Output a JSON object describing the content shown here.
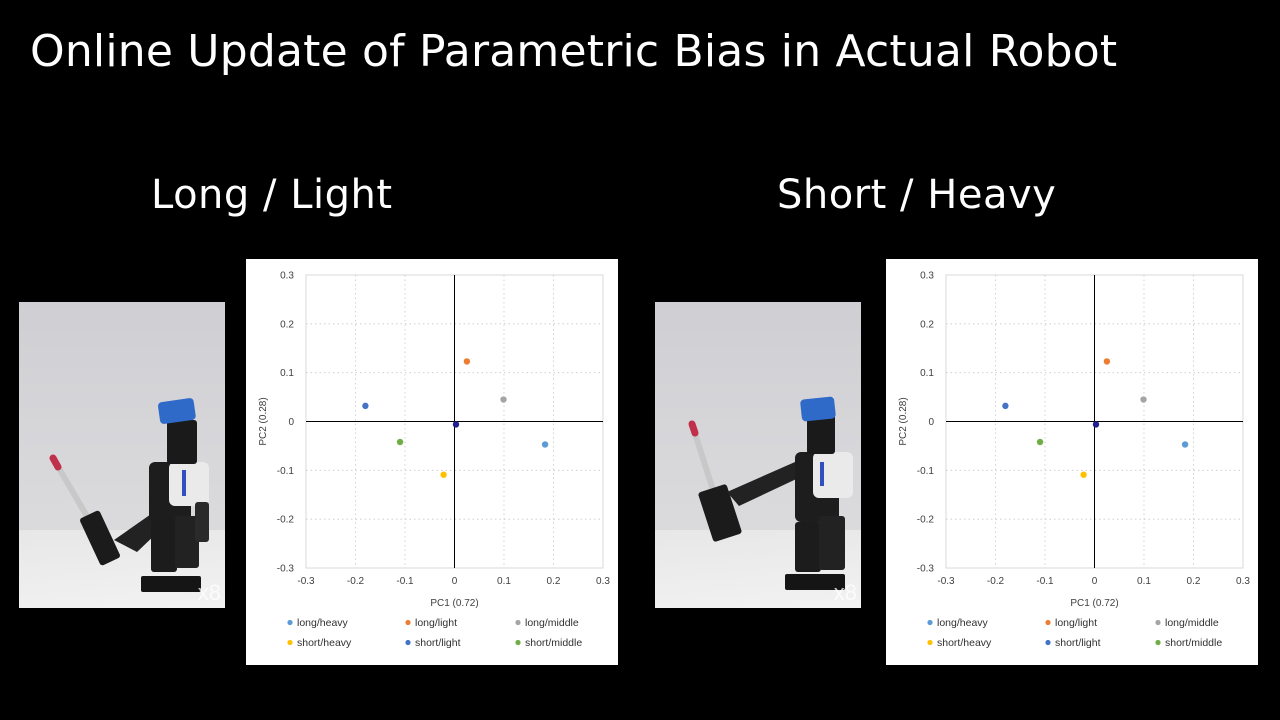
{
  "title": "Online Update of Parametric Bias in Actual Robot",
  "panels": [
    {
      "label": "Long / Light",
      "speed": "x8"
    },
    {
      "label": "Short / Heavy",
      "speed": "x8"
    }
  ],
  "chart_data": [
    {
      "type": "scatter",
      "xlabel": "PC1 (0.72)",
      "ylabel": "PC2 (0.28)",
      "xlim": [
        -0.3,
        0.3
      ],
      "ylim": [
        -0.3,
        0.3
      ],
      "xticks": [
        "-0.3",
        "-0.2",
        "-0.1",
        "0",
        "0.1",
        "0.2",
        "0.3"
      ],
      "yticks": [
        "0.3",
        "0.2",
        "0.1",
        "0",
        "-0.1",
        "-0.2",
        "-0.3"
      ],
      "grid": true,
      "legend_position": "bottom",
      "series": [
        {
          "name": "long/heavy",
          "color": "#5b9bd5",
          "x": [
            0.183
          ],
          "y": [
            -0.047
          ]
        },
        {
          "name": "long/light",
          "color": "#ed7d31",
          "x": [
            0.025
          ],
          "y": [
            0.123
          ]
        },
        {
          "name": "long/middle",
          "color": "#a5a5a5",
          "x": [
            0.099
          ],
          "y": [
            0.045
          ]
        },
        {
          "name": "short/heavy",
          "color": "#ffc000",
          "x": [
            -0.022
          ],
          "y": [
            -0.109
          ]
        },
        {
          "name": "short/light",
          "color": "#4472c4",
          "x": [
            -0.18
          ],
          "y": [
            0.032
          ]
        },
        {
          "name": "short/middle",
          "color": "#70ad47",
          "x": [
            -0.11
          ],
          "y": [
            -0.042
          ]
        },
        {
          "color": "#1f1f8f",
          "x": [
            0.003
          ],
          "y": [
            -0.006
          ]
        }
      ]
    },
    {
      "type": "scatter",
      "xlabel": "PC1 (0.72)",
      "ylabel": "PC2 (0.28)",
      "xlim": [
        -0.3,
        0.3
      ],
      "ylim": [
        -0.3,
        0.3
      ],
      "xticks": [
        "-0.3",
        "-0.2",
        "-0.1",
        "0",
        "0.1",
        "0.2",
        "0.3"
      ],
      "yticks": [
        "0.3",
        "0.2",
        "0.1",
        "0",
        "-0.1",
        "-0.2",
        "-0.3"
      ],
      "grid": true,
      "legend_position": "bottom",
      "series": [
        {
          "name": "long/heavy",
          "color": "#5b9bd5",
          "x": [
            0.183
          ],
          "y": [
            -0.047
          ]
        },
        {
          "name": "long/light",
          "color": "#ed7d31",
          "x": [
            0.025
          ],
          "y": [
            0.123
          ]
        },
        {
          "name": "long/middle",
          "color": "#a5a5a5",
          "x": [
            0.099
          ],
          "y": [
            0.045
          ]
        },
        {
          "name": "short/heavy",
          "color": "#ffc000",
          "x": [
            -0.022
          ],
          "y": [
            -0.109
          ]
        },
        {
          "name": "short/light",
          "color": "#4472c4",
          "x": [
            -0.18
          ],
          "y": [
            0.032
          ]
        },
        {
          "name": "short/middle",
          "color": "#70ad47",
          "x": [
            -0.11
          ],
          "y": [
            -0.042
          ]
        },
        {
          "color": "#1f1f8f",
          "x": [
            0.003
          ],
          "y": [
            -0.006
          ]
        }
      ]
    }
  ]
}
